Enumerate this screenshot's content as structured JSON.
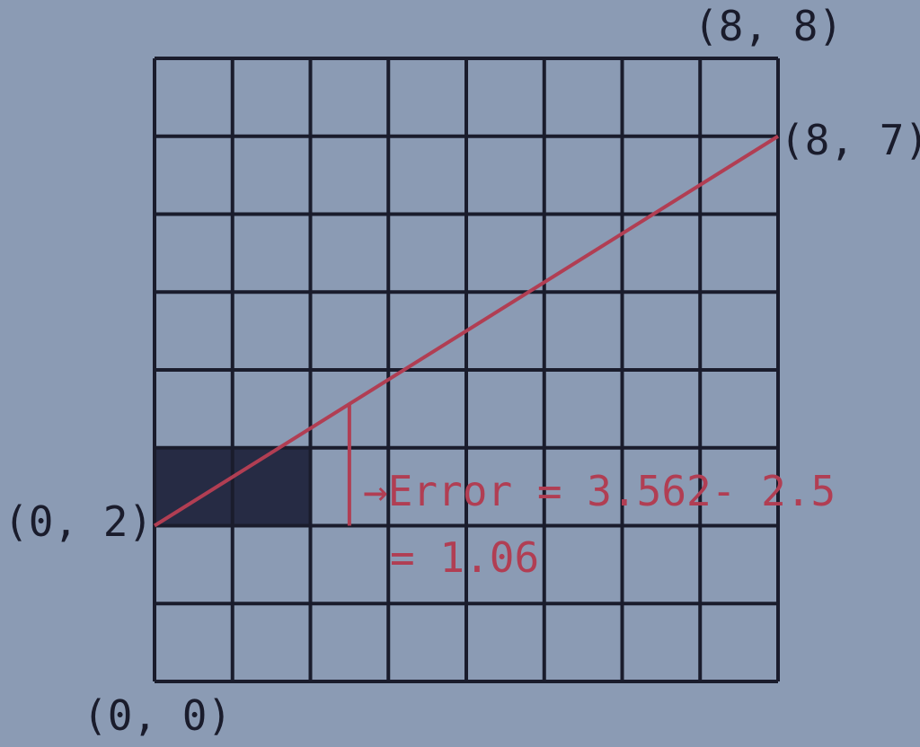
{
  "diagram": {
    "grid": {
      "cols": 8,
      "rows": 8
    },
    "colors": {
      "background": "#8b9bb4",
      "grid_line": "#1a1c2c",
      "filled_cell": "#262b44",
      "line": "#b13e53"
    },
    "filled_cells": [
      {
        "col": 0,
        "row": 2
      },
      {
        "col": 1,
        "row": 2
      }
    ],
    "line_segment": {
      "from": [
        0,
        2
      ],
      "to": [
        8,
        7
      ]
    },
    "error_marker": {
      "x": 2.5,
      "y_from": 2,
      "y_to": 3.562
    },
    "labels": {
      "top_right": "(8, 8)",
      "line_end": "(8, 7)",
      "line_start": "(0, 2)",
      "origin": "(0, 0)"
    },
    "error_text": {
      "line1": "→Error = 3.562- 2.5",
      "line2": "= 1.06"
    }
  }
}
